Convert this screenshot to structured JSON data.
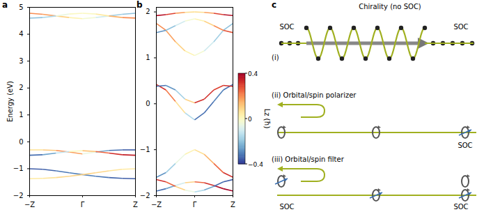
{
  "chart_data": [
    {
      "type": "line",
      "title": "a",
      "ylabel": "Energy (eV)",
      "grid": false,
      "x": [
        -1,
        -0.75,
        -0.5,
        -0.25,
        0,
        0.25,
        0.5,
        0.75,
        1
      ],
      "xlim": [
        -1,
        1
      ],
      "xticks": [
        {
          "value": -1,
          "label": "−Z"
        },
        {
          "value": 0,
          "label": "Γ"
        },
        {
          "value": 1,
          "label": "Z"
        }
      ],
      "ylim": [
        -2,
        5
      ],
      "yticks": [
        -2,
        -1,
        0,
        1,
        2,
        3,
        4,
        5
      ],
      "series": [
        {
          "values": [
            4.78,
            4.74,
            4.68,
            4.62,
            4.58,
            4.62,
            4.68,
            4.74,
            4.78
          ],
          "lz": [
            0.2,
            0.2,
            0.15,
            0.05,
            0,
            -0.05,
            -0.15,
            -0.2,
            -0.2
          ]
        },
        {
          "values": [
            4.6,
            4.62,
            4.68,
            4.75,
            4.78,
            4.75,
            4.68,
            4.62,
            4.6
          ],
          "lz": [
            -0.2,
            -0.2,
            -0.1,
            0,
            0,
            0,
            0.1,
            0.2,
            0.2
          ]
        },
        {
          "values": [
            -0.3,
            -0.3,
            -0.32,
            -0.38,
            -0.45,
            -0.38,
            -0.32,
            -0.3,
            -0.3
          ],
          "lz": [
            0.05,
            0.08,
            0.15,
            0.25,
            0.1,
            -0.2,
            -0.3,
            -0.35,
            -0.35
          ]
        },
        {
          "values": [
            -0.5,
            -0.48,
            -0.42,
            -0.36,
            -0.33,
            -0.36,
            -0.42,
            -0.48,
            -0.5
          ],
          "lz": [
            -0.35,
            -0.3,
            -0.2,
            -0.05,
            0.05,
            0.2,
            0.3,
            0.35,
            0.35
          ]
        },
        {
          "values": [
            -1.0,
            -1.02,
            -1.08,
            -1.15,
            -1.22,
            -1.28,
            -1.33,
            -1.36,
            -1.37
          ],
          "lz": [
            -0.35,
            -0.35,
            -0.33,
            -0.3,
            -0.3,
            -0.3,
            -0.33,
            -0.35,
            -0.35
          ]
        },
        {
          "values": [
            -1.37,
            -1.36,
            -1.33,
            -1.28,
            -1.22,
            -1.15,
            -1.08,
            -1.02,
            -1.0
          ],
          "lz": [
            0.05,
            0.05,
            0.08,
            0.1,
            0.1,
            0.1,
            0.08,
            0.05,
            0.05
          ]
        }
      ]
    },
    {
      "type": "line",
      "title": "b",
      "grid": false,
      "x": [
        -1,
        -0.75,
        -0.5,
        -0.25,
        0,
        0.25,
        0.5,
        0.75,
        1
      ],
      "xlim": [
        -1,
        1
      ],
      "xticks": [
        {
          "value": -1,
          "label": "−Z"
        },
        {
          "value": 0,
          "label": "Γ"
        },
        {
          "value": 1,
          "label": "Z"
        }
      ],
      "ylim": [
        -2,
        2.1
      ],
      "yticks": [
        -2,
        -1,
        0,
        1,
        2
      ],
      "series": [
        {
          "values": [
            1.92,
            1.94,
            1.97,
            1.99,
            2.0,
            1.99,
            1.97,
            1.94,
            1.92
          ],
          "lz": [
            0.4,
            0.35,
            0.25,
            0.1,
            0.05,
            0.1,
            0.25,
            0.35,
            0.4
          ]
        },
        {
          "values": [
            1.75,
            1.6,
            1.35,
            1.15,
            1.05,
            1.15,
            1.35,
            1.6,
            1.75
          ],
          "lz": [
            0.2,
            0.2,
            0.15,
            0.05,
            0,
            -0.05,
            -0.15,
            -0.2,
            -0.2
          ]
        },
        {
          "values": [
            1.55,
            1.6,
            1.7,
            1.8,
            1.85,
            1.8,
            1.7,
            1.6,
            1.55
          ],
          "lz": [
            -0.3,
            -0.25,
            -0.15,
            -0.05,
            0,
            0.05,
            0.15,
            0.25,
            0.3
          ]
        },
        {
          "values": [
            0.42,
            0.3,
            0.05,
            -0.2,
            -0.35,
            -0.2,
            0.05,
            0.3,
            0.42
          ],
          "lz": [
            0.35,
            0.3,
            0.15,
            0,
            -0.3,
            -0.35,
            -0.3,
            -0.3,
            -0.35
          ]
        },
        {
          "values": [
            0.38,
            0.4,
            0.3,
            0.1,
            0.02,
            0.1,
            0.3,
            0.4,
            0.38
          ],
          "lz": [
            -0.35,
            -0.3,
            -0.25,
            -0.1,
            0.3,
            0.35,
            0.3,
            0.3,
            0.35
          ]
        },
        {
          "values": [
            -1.6,
            -1.5,
            -1.3,
            -1.1,
            -1.0,
            -1.1,
            -1.3,
            -1.5,
            -1.6
          ],
          "lz": [
            -0.3,
            -0.25,
            -0.1,
            0,
            0.05,
            0.1,
            0.2,
            0.3,
            0.35
          ]
        },
        {
          "values": [
            -1.9,
            -1.85,
            -1.78,
            -1.72,
            -1.7,
            -1.72,
            -1.78,
            -1.85,
            -1.9
          ],
          "lz": [
            -0.35,
            -0.3,
            -0.2,
            0,
            0.2,
            0.3,
            0.35,
            0.4,
            0.4
          ]
        },
        {
          "values": [
            -1.65,
            -1.7,
            -1.8,
            -1.88,
            -1.92,
            -1.88,
            -1.8,
            -1.7,
            -1.65
          ],
          "lz": [
            0.35,
            0.3,
            0.2,
            0,
            -0.1,
            -0.2,
            -0.3,
            -0.35,
            -0.35
          ]
        }
      ],
      "colorbar": {
        "label": "Lz (ħ)",
        "range": [
          -0.4,
          0.4
        ],
        "ticks": [
          -0.4,
          0,
          0.4
        ]
      }
    }
  ],
  "diagram": {
    "panel": "c",
    "i": {
      "label": "(i)",
      "title": "Chirality (no SOC)",
      "left": "SOC",
      "right": "SOC"
    },
    "ii": {
      "label": "(ii)",
      "title": "Orbital/spin polarizer",
      "right": "SOC"
    },
    "iii": {
      "label": "(iii)",
      "title": "Orbital/spin filter",
      "left": "SOC",
      "right": "SOC"
    }
  }
}
